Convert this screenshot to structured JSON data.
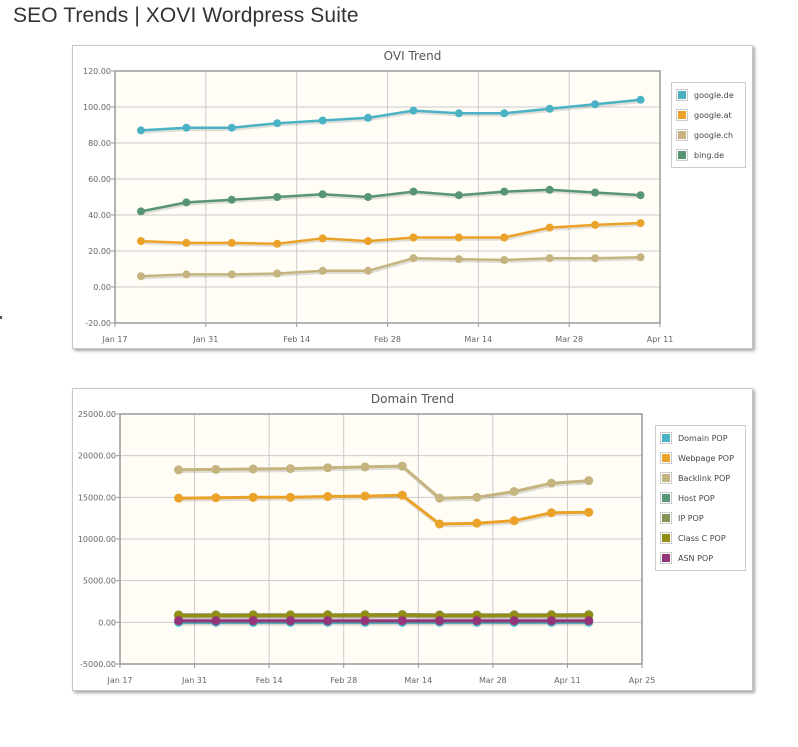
{
  "page": {
    "title": "SEO Trends | XOVI Wordpress Suite"
  },
  "chart_data": [
    {
      "type": "line",
      "title": "OVI Trend",
      "xlabel": "",
      "ylabel": "",
      "ylim": [
        -20,
        120
      ],
      "yticks": [
        "120.00",
        "100.00",
        "80.00",
        "60.00",
        "40.00",
        "20.00",
        "0.00",
        "-20.00"
      ],
      "ytick_values": [
        120,
        100,
        80,
        60,
        40,
        20,
        0,
        -20
      ],
      "xlim": [
        "2011-01-17",
        "2011-04-11"
      ],
      "xticks": [
        {
          "label": "Jan 17",
          "date": "2011-01-17"
        },
        {
          "label": "Jan 31",
          "date": "2011-01-31"
        },
        {
          "label": "Feb 14",
          "date": "2011-02-14"
        },
        {
          "label": "Feb 28",
          "date": "2011-02-28"
        },
        {
          "label": "Mar 14",
          "date": "2011-03-14"
        },
        {
          "label": "Mar 28",
          "date": "2011-03-28"
        },
        {
          "label": "Apr 11",
          "date": "2011-04-11"
        }
      ],
      "x": [
        "2011-01-21",
        "2011-01-28",
        "2011-02-04",
        "2011-02-11",
        "2011-02-18",
        "2011-02-25",
        "2011-03-04",
        "2011-03-11",
        "2011-03-18",
        "2011-03-25",
        "2011-04-01",
        "2011-04-08"
      ],
      "grid": true,
      "legend_position": "right",
      "series": [
        {
          "name": "google.de",
          "color": "#4bb2c5",
          "values": [
            87,
            88.5,
            88.5,
            91,
            92.5,
            94,
            98,
            96.5,
            96.5,
            99,
            101.5,
            104
          ]
        },
        {
          "name": "google.at",
          "color": "#eaa228",
          "values": [
            25.5,
            24.5,
            24.5,
            24,
            27,
            25.5,
            27.5,
            27.5,
            27.5,
            33,
            34.5,
            35.5
          ]
        },
        {
          "name": "google.ch",
          "color": "#c5b47f",
          "values": [
            6,
            7,
            7,
            7.5,
            9,
            9,
            16,
            15.5,
            15,
            16,
            16,
            16.5
          ]
        },
        {
          "name": "bing.de",
          "color": "#579575",
          "values": [
            42,
            47,
            48.5,
            50,
            51.5,
            50,
            53,
            51,
            53,
            54,
            52.5,
            51
          ]
        }
      ]
    },
    {
      "type": "line",
      "title": "Domain Trend",
      "xlabel": "",
      "ylabel": "",
      "ylim": [
        -5000,
        25000
      ],
      "yticks": [
        "25000.00",
        "20000.00",
        "15000.00",
        "10000.00",
        "5000.00",
        "0.00",
        "-5000.00"
      ],
      "ytick_values": [
        25000,
        20000,
        15000,
        10000,
        5000,
        0,
        -5000
      ],
      "xlim": [
        "2011-01-17",
        "2011-04-25"
      ],
      "xticks": [
        {
          "label": "Jan 17",
          "date": "2011-01-17"
        },
        {
          "label": "Jan 31",
          "date": "2011-01-31"
        },
        {
          "label": "Feb 14",
          "date": "2011-02-14"
        },
        {
          "label": "Feb 28",
          "date": "2011-02-28"
        },
        {
          "label": "Mar 14",
          "date": "2011-03-14"
        },
        {
          "label": "Mar 28",
          "date": "2011-03-28"
        },
        {
          "label": "Apr 11",
          "date": "2011-04-11"
        },
        {
          "label": "Apr 25",
          "date": "2011-04-25"
        }
      ],
      "x": [
        "2011-01-28",
        "2011-02-04",
        "2011-02-11",
        "2011-02-18",
        "2011-02-25",
        "2011-03-04",
        "2011-03-11",
        "2011-03-18",
        "2011-03-25",
        "2011-04-01",
        "2011-04-08",
        "2011-04-15"
      ],
      "grid": true,
      "legend_position": "right",
      "series": [
        {
          "name": "Domain POP",
          "color": "#4bb2c5",
          "values": [
            0,
            0,
            0,
            0,
            0,
            0,
            0,
            0,
            0,
            0,
            0,
            0
          ]
        },
        {
          "name": "Webpage POP",
          "color": "#eaa228",
          "values": [
            14900,
            14950,
            15000,
            15000,
            15100,
            15150,
            15250,
            11800,
            11900,
            12200,
            13150,
            13200
          ]
        },
        {
          "name": "Backlink POP",
          "color": "#c5b47f",
          "values": [
            18300,
            18350,
            18400,
            18450,
            18550,
            18650,
            18750,
            14900,
            15000,
            15700,
            16700,
            17000
          ]
        },
        {
          "name": "Host POP",
          "color": "#579575",
          "values": [
            850,
            850,
            860,
            860,
            870,
            880,
            890,
            850,
            850,
            860,
            870,
            880
          ]
        },
        {
          "name": "IP POP",
          "color": "#839557",
          "values": [
            900,
            900,
            910,
            910,
            920,
            930,
            940,
            900,
            900,
            910,
            920,
            930
          ]
        },
        {
          "name": "Class C POP",
          "color": "#958c12",
          "values": [
            800,
            800,
            810,
            810,
            820,
            830,
            840,
            800,
            800,
            810,
            820,
            830
          ]
        },
        {
          "name": "ASN POP",
          "color": "#953579",
          "values": [
            200,
            200,
            200,
            200,
            200,
            200,
            200,
            200,
            200,
            200,
            200,
            200
          ]
        }
      ]
    }
  ]
}
